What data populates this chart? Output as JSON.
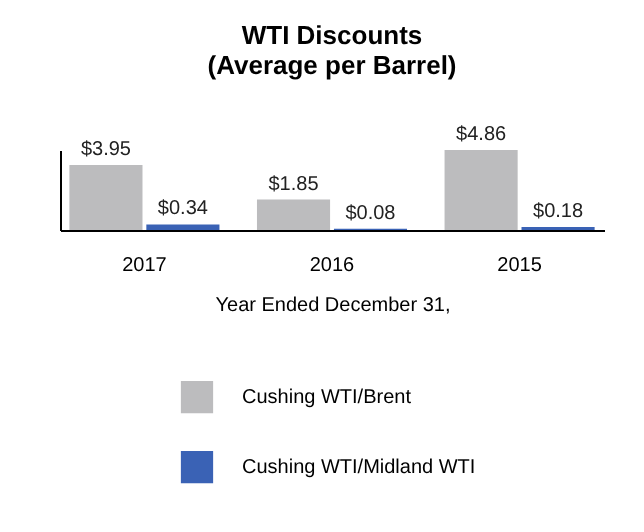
{
  "chart_data": {
    "type": "bar",
    "title": "WTI Discounts\n(Average per Barrel)",
    "xlabel": "Year Ended December 31,",
    "categories": [
      "2017",
      "2016",
      "2015"
    ],
    "series": [
      {
        "name": "Cushing WTI/Brent",
        "color": "#bcbcbe",
        "values": [
          3.95,
          1.85,
          4.86
        ],
        "value_labels": [
          "$3.95",
          "$1.85",
          "$4.86"
        ]
      },
      {
        "name": "Cushing WTI/Midland WTI",
        "color": "#3a62b5",
        "values": [
          0.34,
          0.08,
          0.18
        ],
        "value_labels": [
          "$0.34",
          "$0.08",
          "$0.18"
        ]
      }
    ],
    "legend": "bottom",
    "grid": false
  }
}
